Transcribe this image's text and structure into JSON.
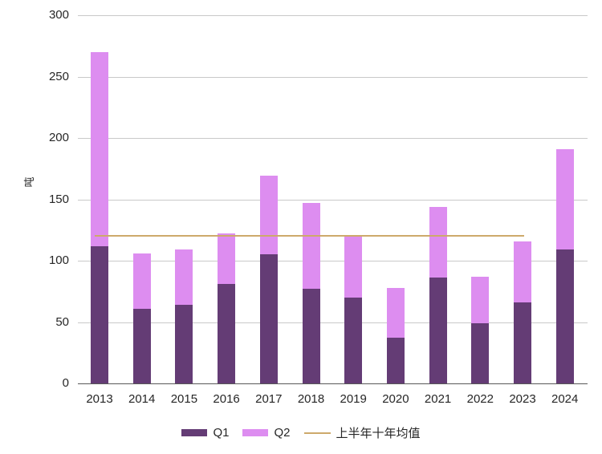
{
  "page": {
    "background": "#ffffff",
    "title": ""
  },
  "chart_data": {
    "type": "bar",
    "stacked": true,
    "title": "",
    "xlabel": "",
    "ylabel": "吨",
    "categories": [
      "2013",
      "2014",
      "2015",
      "2016",
      "2017",
      "2018",
      "2019",
      "2020",
      "2021",
      "2022",
      "2023",
      "2024"
    ],
    "series": [
      {
        "name": "Q1",
        "color": "#643c75",
        "values": [
          112,
          61,
          64,
          81,
          105,
          77,
          70,
          37,
          86,
          49,
          66,
          109
        ]
      },
      {
        "name": "Q2",
        "color": "#dd8df0",
        "values": [
          158,
          45,
          45,
          41,
          64,
          70,
          51,
          41,
          58,
          38,
          50,
          82
        ]
      }
    ],
    "stacked_totals": [
      270,
      106,
      109,
      122,
      169,
      147,
      121,
      78,
      144,
      87,
      116,
      191
    ],
    "reference_line": {
      "label": "上半年十年均值",
      "value": 120,
      "color": "#cda96b",
      "from_category": "2013",
      "to_category": "2023"
    },
    "ylim": [
      0,
      300
    ],
    "yticks": [
      0,
      50,
      100,
      150,
      200,
      250,
      300
    ],
    "grid": true,
    "gridline_color": "#c9c9c9",
    "axis_line_color": "#595959",
    "tick_label_color": "#262626",
    "legend_position": "bottom",
    "legend_items": [
      "Q1",
      "Q2",
      "上半年十年均值"
    ]
  }
}
